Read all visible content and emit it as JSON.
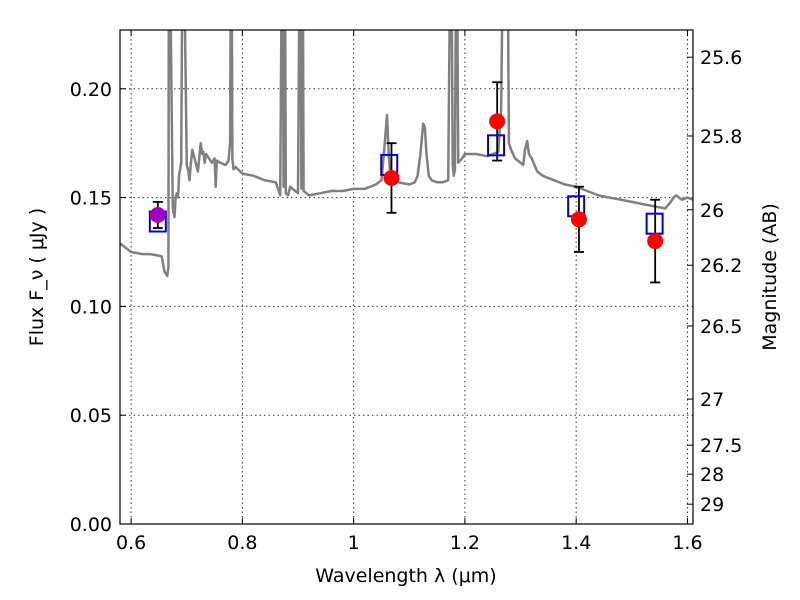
{
  "chart_data": {
    "type": "scatter",
    "xlabel": "Wavelength  λ (μm)",
    "ylabel": "Flux  F_ν  ( μJy )",
    "y2label": "Magnitude (AB)",
    "xlim": [
      0.58,
      1.61
    ],
    "ylim": [
      0.0,
      0.227
    ],
    "grid": true,
    "x_ticks": [
      {
        "value": 0.6,
        "label": "0.6"
      },
      {
        "value": 0.8,
        "label": "0.8"
      },
      {
        "value": 1.0,
        "label": "1"
      },
      {
        "value": 1.2,
        "label": "1.2"
      },
      {
        "value": 1.4,
        "label": "1.4"
      },
      {
        "value": 1.6,
        "label": "1.6"
      }
    ],
    "y_ticks": [
      {
        "value": 0.0,
        "label": "0.00"
      },
      {
        "value": 0.05,
        "label": "0.05"
      },
      {
        "value": 0.1,
        "label": "0.10"
      },
      {
        "value": 0.15,
        "label": "0.15"
      },
      {
        "value": 0.2,
        "label": "0.20"
      }
    ],
    "y2_ticks": [
      {
        "flux": 0.2145,
        "label": "25.6"
      },
      {
        "flux": 0.1783,
        "label": "25.8"
      },
      {
        "flux": 0.1444,
        "label": "26"
      },
      {
        "flux": 0.1189,
        "label": "26.2"
      },
      {
        "flux": 0.091,
        "label": "26.5"
      },
      {
        "flux": 0.0574,
        "label": "27"
      },
      {
        "flux": 0.0362,
        "label": "27.5"
      },
      {
        "flux": 0.0229,
        "label": "28"
      },
      {
        "flux": 0.0091,
        "label": "29"
      }
    ],
    "observed": {
      "color": "#ff0000",
      "points": [
        {
          "x": 0.648,
          "y": 0.142,
          "err": 0.006
        },
        {
          "x": 1.068,
          "y": 0.159,
          "err": 0.016
        },
        {
          "x": 1.258,
          "y": 0.185,
          "err": 0.018
        },
        {
          "x": 1.405,
          "y": 0.14,
          "err": 0.015
        },
        {
          "x": 1.542,
          "y": 0.13,
          "err": 0.019
        }
      ]
    },
    "purple_point": {
      "x": 0.648,
      "y": 0.142,
      "color": "#9900cc"
    },
    "model_points": {
      "color": "#0000cc",
      "points": [
        {
          "x": 0.648,
          "y": 0.139
        },
        {
          "x": 1.064,
          "y": 0.165
        },
        {
          "x": 1.256,
          "y": 0.174
        },
        {
          "x": 1.4,
          "y": 0.146
        },
        {
          "x": 1.541,
          "y": 0.138
        }
      ]
    },
    "spectrum": {
      "color": "#808080",
      "x": [
        0.58,
        0.6,
        0.62,
        0.635,
        0.655,
        0.66,
        0.665,
        0.667,
        0.668,
        0.675,
        0.678,
        0.68,
        0.682,
        0.684,
        0.685,
        0.686,
        0.69,
        0.693,
        0.7,
        0.703,
        0.705,
        0.707,
        0.71,
        0.72,
        0.725,
        0.728,
        0.73,
        0.732,
        0.735,
        0.745,
        0.75,
        0.752,
        0.754,
        0.76,
        0.77,
        0.775,
        0.778,
        0.78,
        0.782,
        0.784,
        0.788,
        0.8,
        0.82,
        0.84,
        0.86,
        0.868,
        0.872,
        0.874,
        0.876,
        0.878,
        0.882,
        0.886,
        0.89,
        0.9,
        0.904,
        0.906,
        0.908,
        0.91,
        0.915,
        0.92,
        0.94,
        0.96,
        0.98,
        1.0,
        1.02,
        1.04,
        1.05,
        1.055,
        1.06,
        1.063,
        1.066,
        1.07,
        1.08,
        1.1,
        1.11,
        1.115,
        1.12,
        1.125,
        1.128,
        1.131,
        1.135,
        1.14,
        1.15,
        1.16,
        1.17,
        1.175,
        1.178,
        1.18,
        1.182,
        1.185,
        1.188,
        1.195,
        1.2,
        1.22,
        1.24,
        1.26,
        1.265,
        1.27,
        1.273,
        1.276,
        1.279,
        1.283,
        1.29,
        1.3,
        1.305,
        1.308,
        1.312,
        1.315,
        1.32,
        1.33,
        1.34,
        1.36,
        1.38,
        1.4,
        1.42,
        1.44,
        1.46,
        1.48,
        1.5,
        1.52,
        1.54,
        1.56,
        1.57,
        1.575,
        1.58,
        1.59,
        1.6,
        1.61
      ],
      "y": [
        0.129,
        0.125,
        0.124,
        0.124,
        0.123,
        0.116,
        0.114,
        0.118,
        0.3,
        0.145,
        0.141,
        0.15,
        0.152,
        0.15,
        0.153,
        0.16,
        0.166,
        0.3,
        0.165,
        0.162,
        0.158,
        0.165,
        0.172,
        0.162,
        0.175,
        0.17,
        0.171,
        0.166,
        0.17,
        0.166,
        0.168,
        0.155,
        0.167,
        0.166,
        0.165,
        0.167,
        0.175,
        0.3,
        0.168,
        0.163,
        0.164,
        0.161,
        0.16,
        0.158,
        0.157,
        0.151,
        0.3,
        0.155,
        0.3,
        0.152,
        0.151,
        0.155,
        0.154,
        0.152,
        0.3,
        0.154,
        0.3,
        0.153,
        0.152,
        0.151,
        0.152,
        0.153,
        0.153,
        0.154,
        0.154,
        0.156,
        0.158,
        0.172,
        0.188,
        0.17,
        0.16,
        0.158,
        0.157,
        0.156,
        0.157,
        0.16,
        0.17,
        0.184,
        0.182,
        0.17,
        0.16,
        0.158,
        0.157,
        0.157,
        0.158,
        0.3,
        0.165,
        0.16,
        0.163,
        0.3,
        0.166,
        0.168,
        0.17,
        0.17,
        0.169,
        0.171,
        0.19,
        0.3,
        0.3,
        0.3,
        0.175,
        0.172,
        0.168,
        0.166,
        0.165,
        0.172,
        0.176,
        0.17,
        0.168,
        0.162,
        0.16,
        0.158,
        0.156,
        0.155,
        0.153,
        0.151,
        0.15,
        0.149,
        0.148,
        0.147,
        0.146,
        0.145,
        0.148,
        0.15,
        0.151,
        0.149,
        0.15,
        0.149
      ]
    }
  }
}
